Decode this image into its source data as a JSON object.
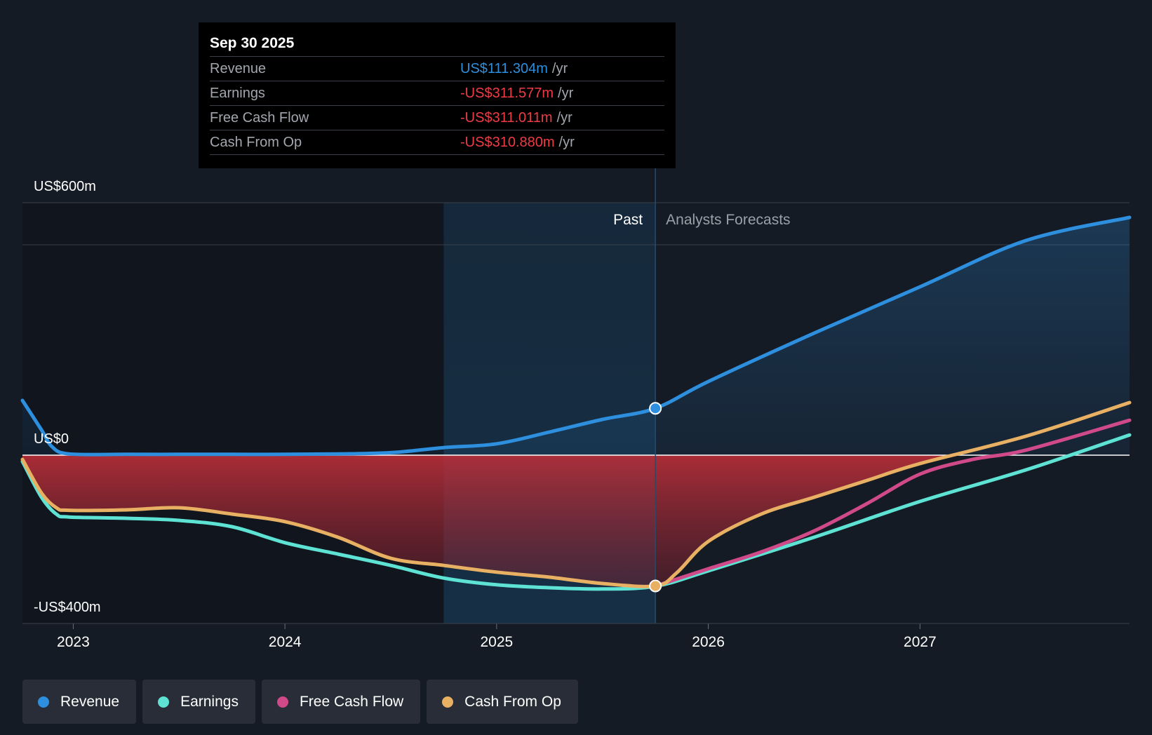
{
  "colors": {
    "revenue": "#2d8fde",
    "earnings": "#5de2d3",
    "free_cash_flow": "#d04a8a",
    "cash_from_op": "#e8b063",
    "negative_value": "#ee3b46",
    "positive_value": "#2d8fde"
  },
  "tooltip": {
    "date": "Sep 30 2025",
    "rows": [
      {
        "label": "Revenue",
        "value": "US$111.304m",
        "unit": "/yr",
        "sign": "positive"
      },
      {
        "label": "Earnings",
        "value": "-US$311.577m",
        "unit": "/yr",
        "sign": "negative"
      },
      {
        "label": "Free Cash Flow",
        "value": "-US$311.011m",
        "unit": "/yr",
        "sign": "negative"
      },
      {
        "label": "Cash From Op",
        "value": "-US$310.880m",
        "unit": "/yr",
        "sign": "negative"
      }
    ]
  },
  "legend": [
    {
      "label": "Revenue",
      "color_key": "revenue"
    },
    {
      "label": "Earnings",
      "color_key": "earnings"
    },
    {
      "label": "Free Cash Flow",
      "color_key": "free_cash_flow"
    },
    {
      "label": "Cash From Op",
      "color_key": "cash_from_op"
    }
  ],
  "chart_data": {
    "type": "line",
    "title": "",
    "xlabel": "",
    "ylabel": "",
    "ylim": [
      -400,
      600
    ],
    "xlim": [
      2022.76,
      2027.99
    ],
    "y_tick_labels": [
      {
        "value": 600,
        "label": "US$600m"
      },
      {
        "value": 0,
        "label": "US$0"
      },
      {
        "value": -400,
        "label": "-US$400m"
      }
    ],
    "x_ticks": [
      {
        "value": 2023.0,
        "label": "2023"
      },
      {
        "value": 2024.0,
        "label": "2024"
      },
      {
        "value": 2025.0,
        "label": "2025"
      },
      {
        "value": 2026.0,
        "label": "2026"
      },
      {
        "value": 2027.0,
        "label": "2027"
      }
    ],
    "past_label": "Past",
    "forecast_label": "Analysts Forecasts",
    "past_start": 2024.75,
    "divider_x": 2025.75,
    "highlight_x": 2025.75,
    "highlight_values": {
      "revenue": 111.304,
      "earnings": -311.577,
      "free_cash_flow": -311.011,
      "cash_from_op": -310.88
    },
    "series": [
      {
        "key": "revenue",
        "name": "Revenue",
        "points": [
          [
            2022.76,
            130
          ],
          [
            2022.85,
            60
          ],
          [
            2022.9,
            20
          ],
          [
            2022.98,
            3
          ],
          [
            2023.25,
            2
          ],
          [
            2023.5,
            2
          ],
          [
            2023.75,
            2
          ],
          [
            2024.0,
            2
          ],
          [
            2024.25,
            3
          ],
          [
            2024.5,
            6
          ],
          [
            2024.75,
            18
          ],
          [
            2025.0,
            27
          ],
          [
            2025.25,
            55
          ],
          [
            2025.5,
            85
          ],
          [
            2025.75,
            111.304
          ],
          [
            2026.0,
            175
          ],
          [
            2026.5,
            290
          ],
          [
            2027.0,
            400
          ],
          [
            2027.5,
            510
          ],
          [
            2027.99,
            565
          ]
        ]
      },
      {
        "key": "earnings",
        "name": "Earnings",
        "points": [
          [
            2022.76,
            -15
          ],
          [
            2022.85,
            -100
          ],
          [
            2022.92,
            -140
          ],
          [
            2022.98,
            -147
          ],
          [
            2023.25,
            -150
          ],
          [
            2023.5,
            -155
          ],
          [
            2023.75,
            -170
          ],
          [
            2024.0,
            -208
          ],
          [
            2024.25,
            -235
          ],
          [
            2024.5,
            -262
          ],
          [
            2024.75,
            -292
          ],
          [
            2025.0,
            -308
          ],
          [
            2025.25,
            -315
          ],
          [
            2025.5,
            -318
          ],
          [
            2025.75,
            -311.577
          ],
          [
            2026.0,
            -275
          ],
          [
            2026.5,
            -195
          ],
          [
            2027.0,
            -110
          ],
          [
            2027.5,
            -35
          ],
          [
            2027.99,
            48
          ]
        ]
      },
      {
        "key": "free_cash_flow",
        "name": "Free Cash Flow",
        "points": [
          [
            2025.75,
            -311.011
          ],
          [
            2026.0,
            -270
          ],
          [
            2026.25,
            -230
          ],
          [
            2026.5,
            -180
          ],
          [
            2026.75,
            -115
          ],
          [
            2027.0,
            -45
          ],
          [
            2027.25,
            -10
          ],
          [
            2027.5,
            12
          ],
          [
            2027.99,
            83
          ]
        ]
      },
      {
        "key": "cash_from_op",
        "name": "Cash From Op",
        "points": [
          [
            2022.76,
            -10
          ],
          [
            2022.85,
            -90
          ],
          [
            2022.92,
            -125
          ],
          [
            2022.98,
            -131
          ],
          [
            2023.25,
            -130
          ],
          [
            2023.5,
            -125
          ],
          [
            2023.75,
            -140
          ],
          [
            2024.0,
            -158
          ],
          [
            2024.25,
            -195
          ],
          [
            2024.5,
            -245
          ],
          [
            2024.75,
            -262
          ],
          [
            2025.0,
            -278
          ],
          [
            2025.25,
            -290
          ],
          [
            2025.5,
            -305
          ],
          [
            2025.75,
            -310.88
          ],
          [
            2025.85,
            -280
          ],
          [
            2026.0,
            -205
          ],
          [
            2026.25,
            -140
          ],
          [
            2026.5,
            -100
          ],
          [
            2026.75,
            -60
          ],
          [
            2027.0,
            -20
          ],
          [
            2027.5,
            45
          ],
          [
            2027.99,
            125
          ]
        ]
      }
    ]
  }
}
